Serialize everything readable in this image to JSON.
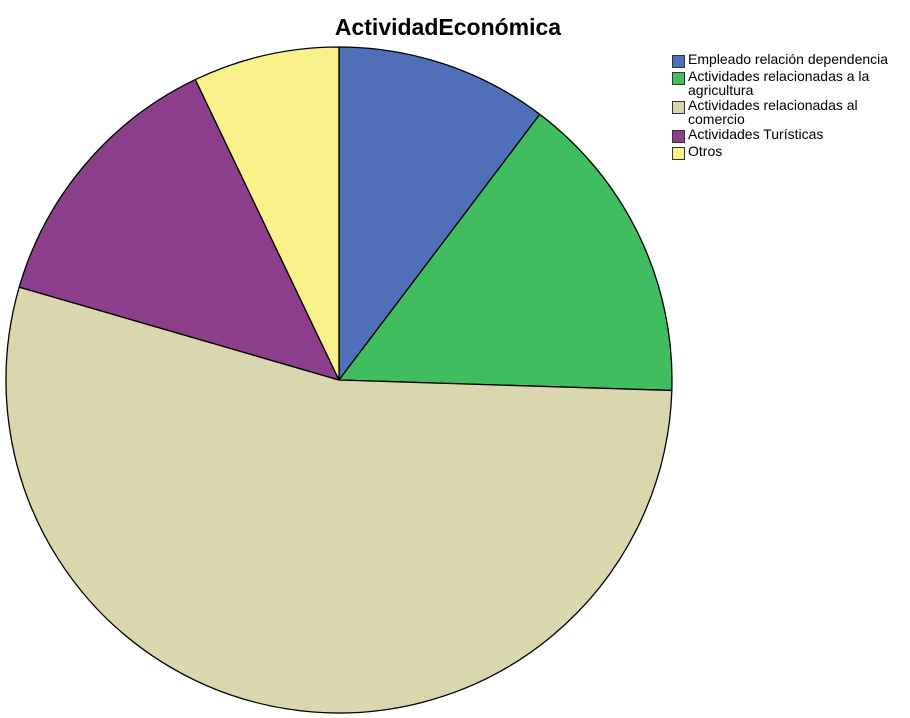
{
  "chart_data": {
    "type": "pie",
    "title": "ActividadEconómica",
    "legend_position": "top-right",
    "start_angle": "12 o'clock",
    "direction": "clockwise",
    "slices": [
      {
        "label": "Empleado relación dependencia",
        "value": 10.3,
        "color": "#4f6fb8"
      },
      {
        "label": "Actividades relacionadas a la agricultura",
        "value": 15.2,
        "color": "#3fbd5f"
      },
      {
        "label": "Actividades relacionadas al comercio",
        "value": 54.0,
        "color": "#dad6ad"
      },
      {
        "label": "Actividades Turísticas",
        "value": 13.4,
        "color": "#8c3f8a"
      },
      {
        "label": "Otros",
        "value": 7.1,
        "color": "#f9f28a"
      }
    ]
  }
}
